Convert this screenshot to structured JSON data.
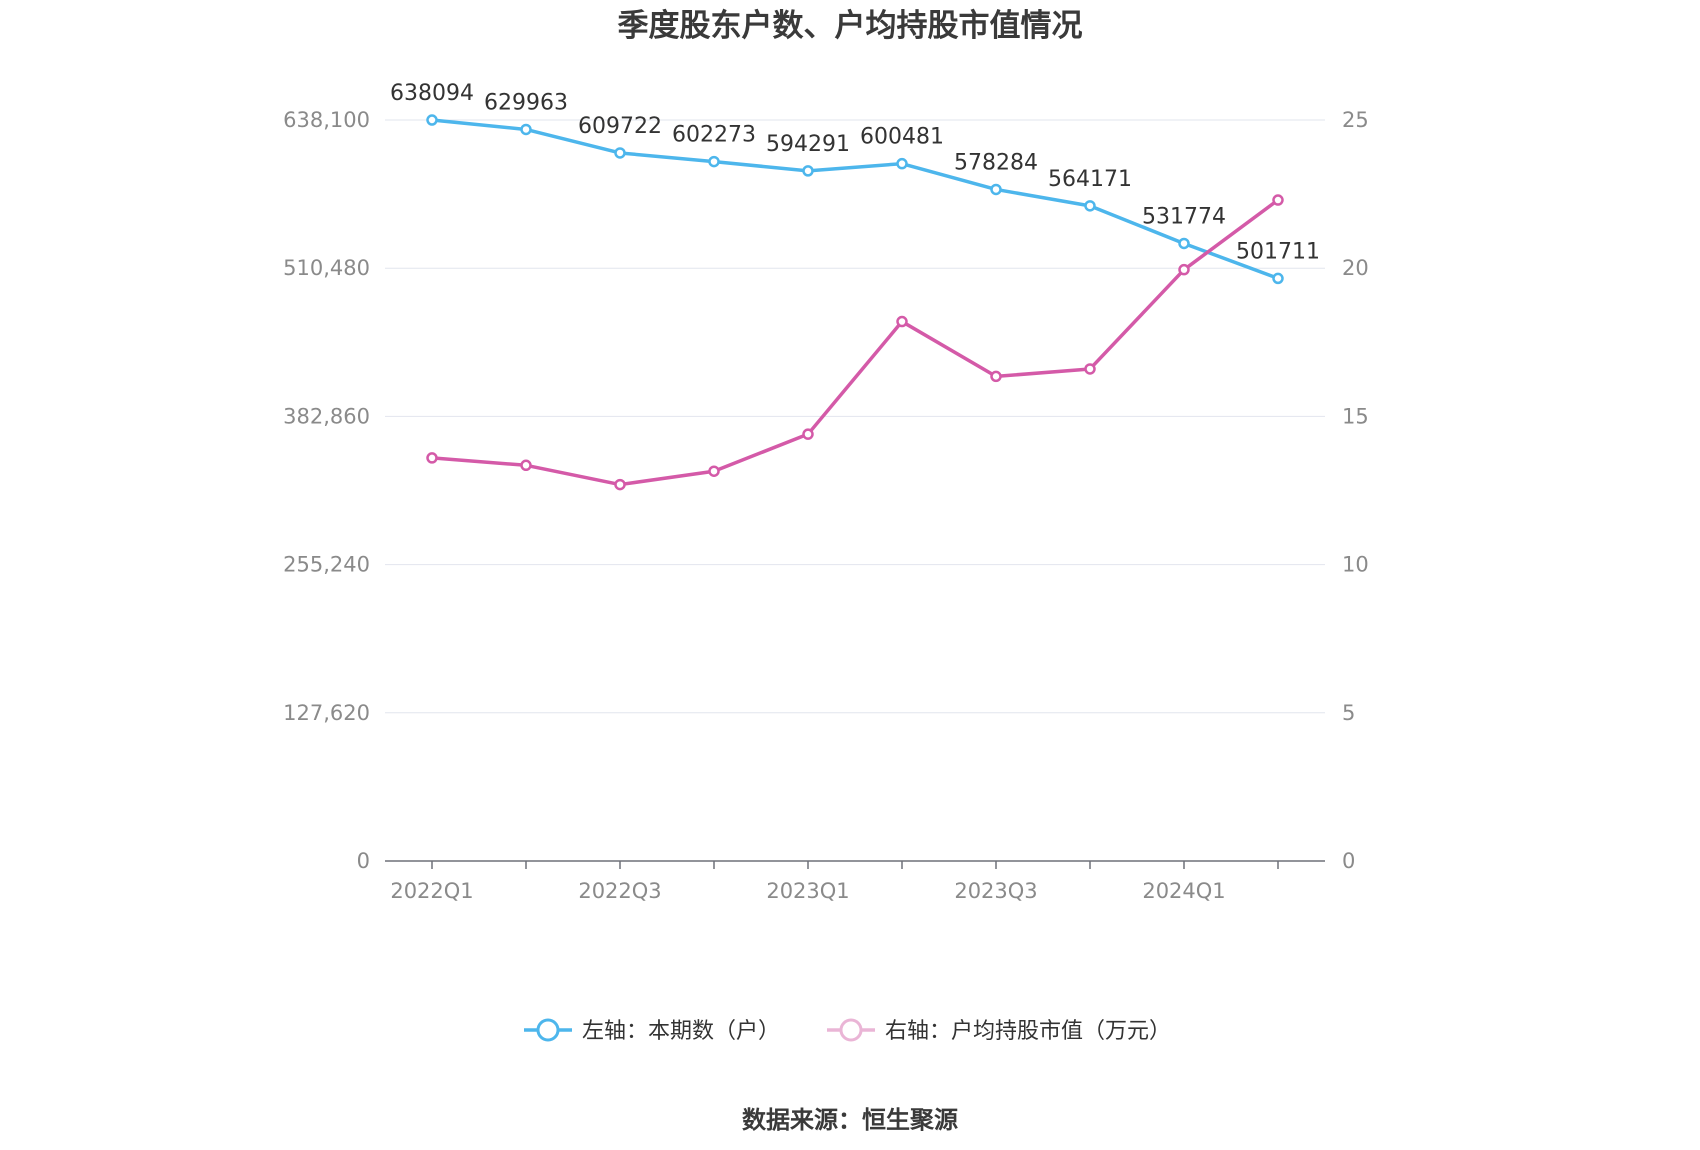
{
  "chart_data": {
    "type": "line",
    "title": "季度股东户数、户均持股市值情况",
    "categories": [
      "2022Q1",
      "2022Q2",
      "2022Q3",
      "2022Q4",
      "2023Q1",
      "2023Q2",
      "2023Q3",
      "2023Q4",
      "2024Q1",
      "2024Q2"
    ],
    "x_tick_labels": [
      "2022Q1",
      "2022Q3",
      "2023Q1",
      "2023Q3",
      "2024Q1"
    ],
    "left_axis": {
      "ylim": [
        0,
        638100
      ],
      "ticks": [
        0,
        127620,
        255240,
        382860,
        510480,
        638100
      ],
      "tick_labels": [
        "0",
        "127,620",
        "255,240",
        "382,860",
        "510,480",
        "638,100"
      ]
    },
    "right_axis": {
      "ylim": [
        0,
        25
      ],
      "ticks": [
        0,
        5,
        10,
        15,
        20,
        25
      ],
      "tick_labels": [
        "0",
        "5",
        "10",
        "15",
        "20",
        "25"
      ]
    },
    "series": [
      {
        "name": "左轴：本期数（户）",
        "axis": "left",
        "color": "#4db6ec",
        "values": [
          638094,
          629963,
          609722,
          602273,
          594291,
          600481,
          578284,
          564171,
          531774,
          501711
        ],
        "data_labels": [
          "638094",
          "629963",
          "609722",
          "602273",
          "594291",
          "600481",
          "578284",
          "564171",
          "531774",
          "501711"
        ]
      },
      {
        "name": "右轴：户均持股市值（万元）",
        "axis": "right",
        "color": "#d45aa8",
        "values": [
          13.6,
          13.35,
          12.7,
          13.15,
          14.4,
          18.2,
          16.35,
          16.6,
          19.95,
          22.3
        ]
      }
    ],
    "grid": true,
    "legend_position": "bottom"
  },
  "footer": {
    "source": "数据来源：恒生聚源"
  }
}
